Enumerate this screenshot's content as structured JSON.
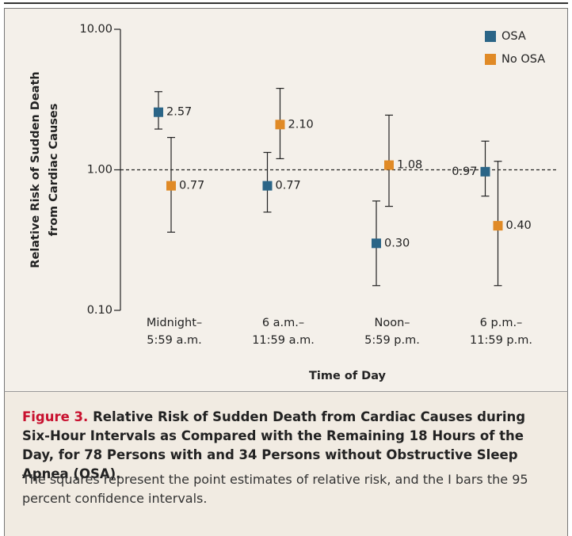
{
  "chart_data": {
    "type": "errorbar",
    "log_scale": true,
    "ylabel": [
      "Relative Risk of Sudden Death",
      "from Cardiac Causes"
    ],
    "xlabel": "Time of Day",
    "categories": [
      [
        "Midnight–",
        "5:59 a.m."
      ],
      [
        "6 a.m.–",
        "11:59 a.m."
      ],
      [
        "Noon–",
        "5:59 p.m."
      ],
      [
        "6 p.m.–",
        "11:59 p.m."
      ]
    ],
    "ylim": [
      0.1,
      10
    ],
    "yticks": [
      {
        "value": 0.1,
        "label": "0.10"
      },
      {
        "value": 1,
        "label": "1.00"
      },
      {
        "value": 10,
        "label": "10.00"
      }
    ],
    "reference_line": 1,
    "legend": "top-right",
    "series": [
      {
        "name": "OSA",
        "color": "#2b6587",
        "values": [
          2.57,
          0.77,
          0.3,
          0.97
        ],
        "value_labels": [
          "2.57",
          "0.77",
          "0.30",
          "0.97"
        ],
        "lower": [
          1.95,
          0.5,
          0.15,
          0.65
        ],
        "upper": [
          3.6,
          1.33,
          0.6,
          1.6
        ]
      },
      {
        "name": "No OSA",
        "color": "#e08a26",
        "values": [
          0.77,
          2.1,
          1.08,
          0.4
        ],
        "value_labels": [
          "0.77",
          "2.10",
          "1.08",
          "0.40"
        ],
        "lower": [
          0.36,
          1.2,
          0.55,
          0.15
        ],
        "upper": [
          1.7,
          3.8,
          2.45,
          1.15
        ]
      }
    ]
  },
  "caption": {
    "label": "Figure 3.",
    "title": "Relative Risk of Sudden Death from Cardiac Causes during Six-Hour Intervals as Compared with the Remaining 18 Hours of the Day, for 78 Persons with and 34 Persons without Obstructive Sleep Apnea (OSA).",
    "text": "The squares represent the point estimates of relative risk, and the I bars the 95 percent confidence intervals."
  }
}
